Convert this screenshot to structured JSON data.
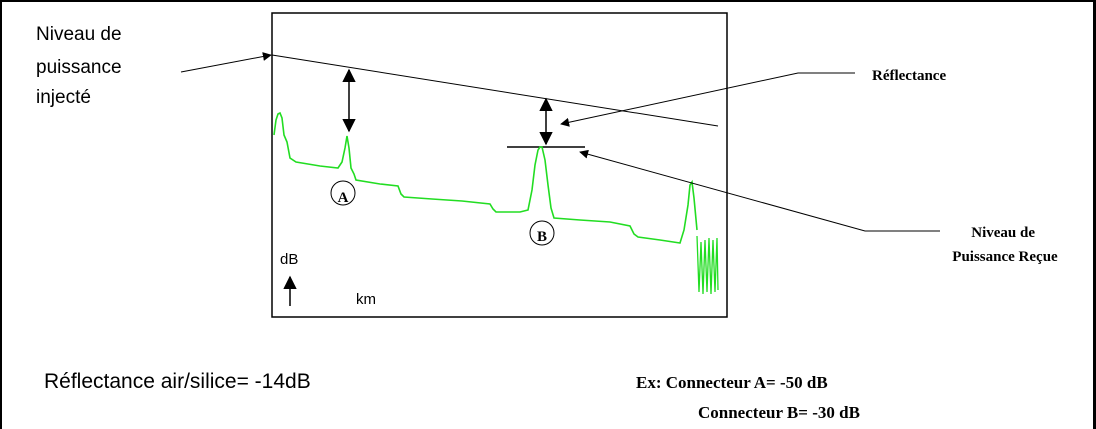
{
  "labels": {
    "injected_power": [
      "Niveau de",
      "puissance",
      "injecté"
    ],
    "reflectance": "Réflectance",
    "received_power": [
      "Niveau de",
      "Puissance Reçue"
    ],
    "marker_a": "A",
    "marker_b": "B",
    "y_axis": "dB",
    "x_axis": "km"
  },
  "notes": {
    "air_silica": "Réflectance air/silice= -14dB",
    "example_a": "Ex: Connecteur A= -50 dB",
    "example_b": "Connecteur B= -30 dB"
  },
  "colors": {
    "trace": "#22dd22",
    "ink": "#000000",
    "background": "#ffffff"
  }
}
